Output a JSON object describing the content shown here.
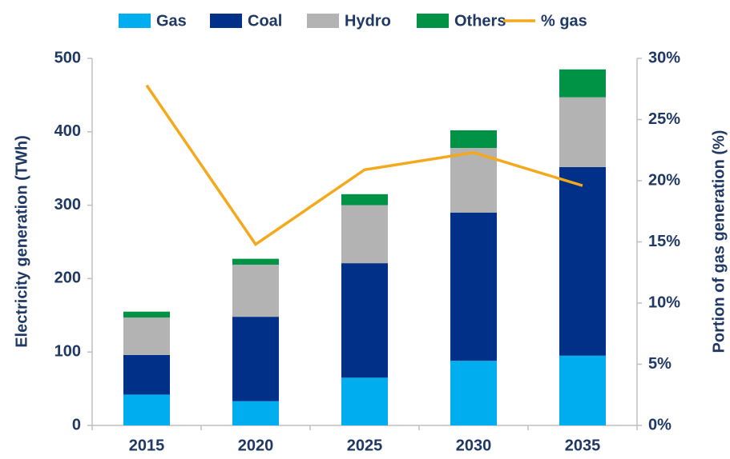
{
  "chart_data": {
    "type": "bar",
    "stacked": true,
    "categories": [
      "2015",
      "2020",
      "2025",
      "2030",
      "2035"
    ],
    "series": [
      {
        "name": "Gas",
        "color": "#00aeef",
        "values": [
          42,
          33,
          65,
          88,
          95
        ]
      },
      {
        "name": "Coal",
        "color": "#003087",
        "values": [
          54,
          115,
          156,
          202,
          257
        ]
      },
      {
        "name": "Hydro",
        "color": "#b3b3b3",
        "values": [
          51,
          71,
          79,
          88,
          95
        ]
      },
      {
        "name": "Others",
        "color": "#009245",
        "values": [
          8,
          8,
          15,
          24,
          38
        ]
      },
      {
        "name": "% gas",
        "color": "#f4a91c",
        "type": "line",
        "axis": "y2",
        "values": [
          27.8,
          14.8,
          20.9,
          22.3,
          19.6
        ]
      }
    ],
    "ylabel": "Electricity generation (TWh)",
    "y2label": "Portion of gas generation (%)",
    "ylim": [
      0,
      500
    ],
    "yticks": [
      0,
      100,
      200,
      300,
      400,
      500
    ],
    "y2lim": [
      0,
      30
    ],
    "y2ticks": [
      {
        "value": 0,
        "label": "0%"
      },
      {
        "value": 5,
        "label": "5%"
      },
      {
        "value": 10,
        "label": "10%"
      },
      {
        "value": 15,
        "label": "15%"
      },
      {
        "value": 20,
        "label": "20%"
      },
      {
        "value": 25,
        "label": "25%"
      },
      {
        "value": 30,
        "label": "30%"
      }
    ],
    "legend": "top",
    "grid": false
  }
}
